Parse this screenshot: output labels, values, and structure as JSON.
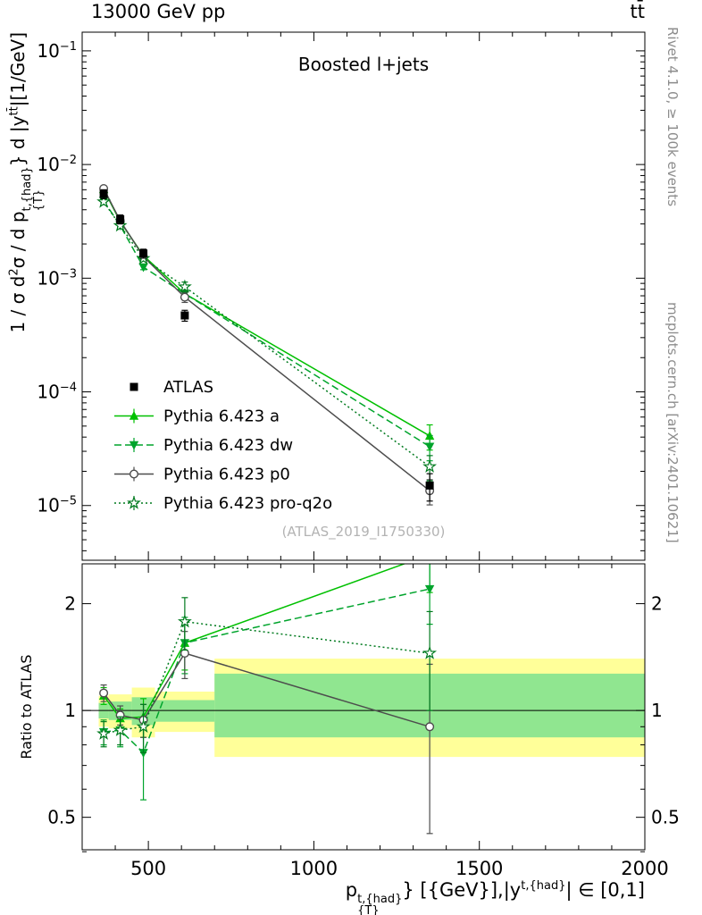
{
  "header": {
    "title_left": "13000 GeV pp",
    "title_right": "tt̄"
  },
  "panel": {
    "annotation": "Boosted l+jets",
    "watermark": "(ATLAS_2019_I1750330)"
  },
  "side_notes": {
    "top": "Rivet 4.1.0, ≥ 100k events",
    "bottom": "mcplots.cern.ch [arXiv:2401.10621]"
  },
  "ylabel_top": {
    "s1": "1 / σ d",
    "s2": "2",
    "s3": "σ / d p",
    "s4": "t,{had}",
    "s5": "{T}",
    "s6": "} d |y",
    "s7": "tt̄",
    "s8": "|[1/GeV]"
  },
  "ylabel_bottom": "Ratio to ATLAS",
  "xlabel": {
    "s1": "p",
    "s2": "t,{had}",
    "s3": "{T}",
    "s4": "} [{GeV}],|y",
    "s5": "t,{had}",
    "s6": "| ∈ [0,1]"
  },
  "chart_data": {
    "type": "line",
    "title": "Boosted l+jets",
    "x": [
      365,
      415,
      485,
      610,
      1350
    ],
    "x_range": [
      300,
      2000
    ],
    "x_ticks": [
      500,
      1000,
      1500,
      2000
    ],
    "main_panel": {
      "y_scale": "log",
      "y_range": [
        3.3e-06,
        0.146
      ],
      "y_tick_exponents": [
        -1,
        -2,
        -3,
        -4,
        -5
      ]
    },
    "ratio_panel": {
      "y_scale": "log",
      "y_range": [
        0.405,
        2.59
      ],
      "y_ticks": [
        0.5,
        1,
        2
      ],
      "y_minor_ticks": [
        0.4,
        0.6,
        0.7,
        0.8,
        0.9
      ],
      "reference": 1,
      "bands": {
        "yellow": {
          "color": "#ffff99",
          "bins": [
            [
              350,
              380,
              0.9,
              1.1
            ],
            [
              380,
              450,
              0.89,
              1.11
            ],
            [
              450,
              520,
              0.84,
              1.16
            ],
            [
              520,
              700,
              0.87,
              1.13
            ],
            [
              700,
              2000,
              0.74,
              1.4
            ]
          ]
        },
        "green": {
          "color": "#90e690",
          "bins": [
            [
              350,
              380,
              0.95,
              1.05
            ],
            [
              380,
              450,
              0.94,
              1.06
            ],
            [
              450,
              520,
              0.91,
              1.09
            ],
            [
              520,
              700,
              0.93,
              1.07
            ],
            [
              700,
              2000,
              0.84,
              1.27
            ]
          ]
        }
      }
    },
    "series": [
      {
        "id": "atlas",
        "label": "ATLAS",
        "color": "#000000",
        "marker": "square",
        "line": "none",
        "values": [
          0.0055,
          0.0033,
          0.00165,
          0.00047,
          1.5e-05
        ],
        "rel_err": [
          0.09,
          0.09,
          0.09,
          0.11,
          0.27
        ]
      },
      {
        "id": "pythia-a",
        "label": "Pythia 6.423 a",
        "color": "#00c000",
        "marker": "triangle-up",
        "line": "solid",
        "values": [
          0.00605,
          0.00314,
          0.00158,
          0.00073,
          4.1e-05
        ],
        "rel_err": [
          0.03,
          0.03,
          0.05,
          0.1,
          0.25
        ],
        "ratio": [
          1.1,
          0.95,
          0.96,
          1.55,
          2.75
        ],
        "ratio_err": [
          0.06,
          0.06,
          0.12,
          0.25,
          0.6
        ]
      },
      {
        "id": "pythia-dw",
        "label": "Pythia 6.423 dw",
        "color": "#00a42c",
        "marker": "triangle-down",
        "line": "dashed",
        "values": [
          0.0048,
          0.0029,
          0.00125,
          0.00073,
          3.3e-05
        ],
        "rel_err": [
          0.03,
          0.03,
          0.05,
          0.1,
          0.25
        ],
        "ratio": [
          0.87,
          0.88,
          0.76,
          1.55,
          2.2
        ],
        "ratio_err": [
          0.07,
          0.09,
          0.2,
          0.28,
          0.45
        ]
      },
      {
        "id": "pythia-p0",
        "label": "Pythia 6.423 p0",
        "color": "#4d4d4d",
        "marker": "circle-open",
        "line": "solid",
        "values": [
          0.00615,
          0.0032,
          0.00155,
          0.00068,
          1.35e-05
        ],
        "rel_err": [
          0.03,
          0.03,
          0.05,
          0.1,
          0.25
        ],
        "ratio": [
          1.12,
          0.97,
          0.94,
          1.45,
          0.9
        ],
        "ratio_err": [
          0.06,
          0.06,
          0.1,
          0.22,
          0.45
        ]
      },
      {
        "id": "pythia-pro-q2o",
        "label": "Pythia 6.423 pro-q2o",
        "color": "#007a1e",
        "marker": "star-open",
        "line": "dotted",
        "values": [
          0.0047,
          0.0029,
          0.00149,
          0.00084,
          2.2e-05
        ],
        "rel_err": [
          0.03,
          0.03,
          0.05,
          0.1,
          0.25
        ],
        "ratio": [
          0.86,
          0.88,
          0.9,
          1.78,
          1.45
        ],
        "ratio_err": [
          0.07,
          0.08,
          0.14,
          0.3,
          0.45
        ]
      }
    ]
  }
}
